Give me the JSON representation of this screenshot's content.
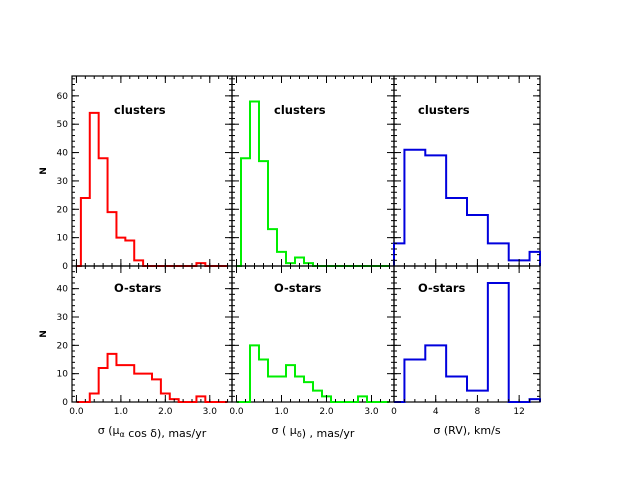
{
  "chart_data": [
    {
      "type": "bar",
      "panel": "top-left",
      "annotation": "clusters",
      "color": "#ff0000",
      "bin_edges": [
        0.0,
        0.1,
        0.2,
        0.3,
        0.4,
        0.5,
        0.6,
        0.7,
        0.8,
        0.9,
        1.0,
        1.1,
        1.2,
        1.3,
        1.4,
        1.5,
        1.6,
        1.7,
        1.8,
        1.9,
        2.0,
        2.1,
        2.2,
        2.3,
        2.4,
        2.5,
        2.6,
        2.7,
        2.8,
        2.9,
        3.0,
        3.1,
        3.2,
        3.3,
        3.4
      ],
      "counts": [
        0,
        24,
        24,
        54,
        54,
        38,
        38,
        19,
        19,
        10,
        10,
        9,
        9,
        2,
        2,
        0,
        0,
        0,
        0,
        0,
        0,
        0,
        0,
        0,
        0,
        0,
        0,
        1,
        1,
        0,
        0,
        0,
        0,
        0
      ],
      "xlim": [
        -0.1,
        3.5
      ],
      "ylim": [
        0,
        67
      ],
      "xticks": [
        "0.0",
        "1.0",
        "2.0",
        "3.0"
      ],
      "yticks": [
        "0",
        "10",
        "20",
        "30",
        "40",
        "50",
        "60"
      ],
      "ylabel": "N"
    },
    {
      "type": "bar",
      "panel": "top-middle",
      "annotation": "clusters",
      "color": "#00ee00",
      "bin_edges": [
        0.0,
        0.1,
        0.2,
        0.3,
        0.4,
        0.5,
        0.6,
        0.7,
        0.8,
        0.9,
        1.0,
        1.1,
        1.2,
        1.3,
        1.4,
        1.5,
        1.6,
        1.7,
        1.8,
        1.9,
        2.0,
        2.1,
        2.2,
        2.3,
        2.4,
        2.5,
        2.6,
        2.7,
        2.8,
        2.9,
        3.0,
        3.1,
        3.2,
        3.3,
        3.4
      ],
      "counts": [
        0,
        38,
        38,
        58,
        58,
        37,
        37,
        13,
        13,
        5,
        5,
        1,
        1,
        3,
        3,
        1,
        1,
        0,
        0,
        0,
        0,
        0,
        0,
        0,
        0,
        0,
        0,
        0,
        0,
        0,
        0,
        0,
        0,
        0
      ],
      "xlim": [
        -0.1,
        3.5
      ],
      "ylim": [
        0,
        67
      ],
      "xticks": [
        "0.0",
        "1.0",
        "2.0",
        "3.0"
      ]
    },
    {
      "type": "bar",
      "panel": "top-right",
      "annotation": "clusters",
      "color": "#0000dd",
      "bin_edges": [
        0,
        1,
        2,
        3,
        4,
        5,
        6,
        7,
        8,
        9,
        10,
        11,
        12,
        13,
        14
      ],
      "counts": [
        8,
        41,
        41,
        39,
        39,
        24,
        24,
        18,
        18,
        8,
        8,
        2,
        2,
        5
      ],
      "xlim": [
        0,
        14
      ],
      "ylim": [
        0,
        67
      ],
      "xticks": [
        "0",
        "4",
        "8",
        "12"
      ]
    },
    {
      "type": "bar",
      "panel": "bottom-left",
      "annotation": "O-stars",
      "color": "#ff0000",
      "bin_edges": [
        0.0,
        0.1,
        0.2,
        0.3,
        0.4,
        0.5,
        0.6,
        0.7,
        0.8,
        0.9,
        1.0,
        1.1,
        1.2,
        1.3,
        1.4,
        1.5,
        1.6,
        1.7,
        1.8,
        1.9,
        2.0,
        2.1,
        2.2,
        2.3,
        2.4,
        2.5,
        2.6,
        2.7,
        2.8,
        2.9,
        3.0,
        3.1,
        3.2,
        3.3,
        3.4
      ],
      "counts": [
        0,
        0,
        0,
        3,
        3,
        12,
        12,
        17,
        17,
        13,
        13,
        13,
        13,
        10,
        10,
        10,
        10,
        8,
        8,
        3,
        3,
        1,
        1,
        0,
        0,
        0,
        0,
        2,
        2,
        0,
        0,
        0,
        0,
        0
      ],
      "xlim": [
        -0.1,
        3.5
      ],
      "ylim": [
        0,
        48
      ],
      "xticks": [
        "0.0",
        "1.0",
        "2.0",
        "3.0"
      ],
      "yticks": [
        "0",
        "10",
        "20",
        "30",
        "40"
      ],
      "ylabel": "N",
      "xlabel": "σ (μ_α cos δ),  mas/yr"
    },
    {
      "type": "bar",
      "panel": "bottom-middle",
      "annotation": "O-stars",
      "color": "#00ee00",
      "bin_edges": [
        0.0,
        0.1,
        0.2,
        0.3,
        0.4,
        0.5,
        0.6,
        0.7,
        0.8,
        0.9,
        1.0,
        1.1,
        1.2,
        1.3,
        1.4,
        1.5,
        1.6,
        1.7,
        1.8,
        1.9,
        2.0,
        2.1,
        2.2,
        2.3,
        2.4,
        2.5,
        2.6,
        2.7,
        2.8,
        2.9,
        3.0,
        3.1,
        3.2,
        3.3,
        3.4
      ],
      "counts": [
        0,
        0,
        0,
        20,
        20,
        15,
        15,
        9,
        9,
        9,
        9,
        13,
        13,
        9,
        9,
        7,
        7,
        4,
        4,
        2,
        2,
        0,
        0,
        0,
        0,
        0,
        0,
        2,
        2,
        0,
        0,
        0,
        0,
        0
      ],
      "xlim": [
        -0.1,
        3.5
      ],
      "ylim": [
        0,
        48
      ],
      "xticks": [
        "0.0",
        "1.0",
        "2.0",
        "3.0"
      ],
      "xlabel": "σ ( μ_δ) ,  mas/yr"
    },
    {
      "type": "bar",
      "panel": "bottom-right",
      "annotation": "O-stars",
      "color": "#0000dd",
      "bin_edges": [
        0,
        1,
        2,
        3,
        4,
        5,
        6,
        7,
        8,
        9,
        10,
        11,
        12,
        13,
        14
      ],
      "counts": [
        0,
        15,
        15,
        20,
        20,
        9,
        9,
        4,
        4,
        42,
        42,
        0,
        0,
        1
      ],
      "xlim": [
        0,
        14
      ],
      "ylim": [
        0,
        48
      ],
      "xticks": [
        "0",
        "4",
        "8",
        "12"
      ],
      "xlabel": "σ (RV),  km/s"
    }
  ]
}
